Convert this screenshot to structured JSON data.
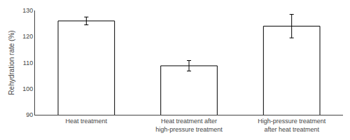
{
  "chart_data": {
    "type": "bar",
    "categories": [
      "Heat treatment",
      "Heat treatment after\nhigh-pressure treatment",
      "High-pressure treatment\nafter heat treatment"
    ],
    "values": [
      126.0,
      108.8,
      124.0
    ],
    "errors": [
      1.5,
      2.0,
      4.5
    ],
    "color": "#ffffff",
    "ylabel": "Rehydration rate (%)",
    "ylim": [
      90,
      130
    ],
    "yticks": [
      90,
      100,
      110,
      120,
      130
    ],
    "grid": false
  }
}
